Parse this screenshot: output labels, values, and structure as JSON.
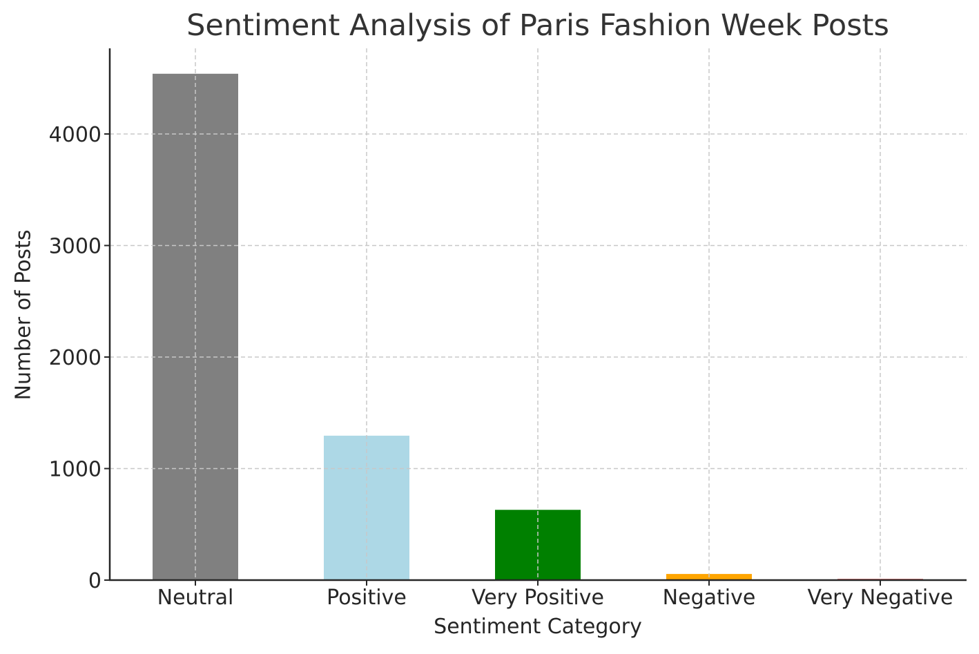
{
  "chart_data": {
    "type": "bar",
    "title": "Sentiment Analysis of Paris Fashion Week Posts",
    "xlabel": "Sentiment Category",
    "ylabel": "Number of Posts",
    "categories": [
      "Neutral",
      "Positive",
      "Very Positive",
      "Negative",
      "Very Negative"
    ],
    "values": [
      4540,
      1295,
      630,
      55,
      10
    ],
    "colors": [
      "#808080",
      "#add8e6",
      "#008000",
      "#ffa500",
      "#cc0000"
    ],
    "ylim": [
      0,
      4770
    ],
    "yticks": [
      0,
      1000,
      2000,
      3000,
      4000
    ],
    "grid": true,
    "legend": null
  }
}
